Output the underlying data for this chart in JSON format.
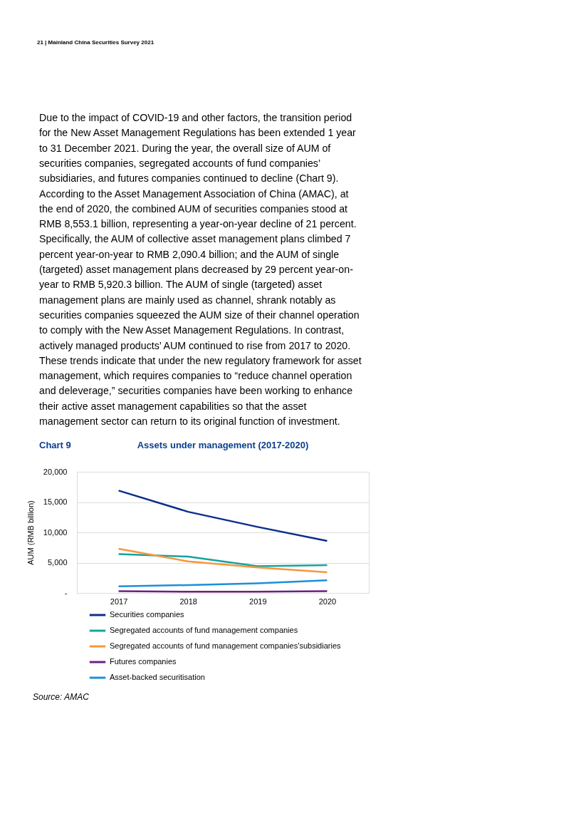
{
  "chart_data": {
    "type": "line",
    "title": "Assets under management (2017-2020)",
    "subtitle": "Chart 9",
    "ylabel": "AUM (RMB billion)",
    "categories": [
      "2017",
      "2018",
      "2019",
      "2020"
    ],
    "series": [
      {
        "name": "Securities companies",
        "color": "#0a2e8a",
        "values": [
          16900,
          13400,
          10900,
          8600
        ]
      },
      {
        "name": "Segregated accounts of fund management companies",
        "color": "#16a39b",
        "values": [
          6400,
          6000,
          4400,
          4600
        ]
      },
      {
        "name": "Segregated accounts of fund management companies’subsidiaries",
        "color": "#f7963d",
        "values": [
          7300,
          5200,
          4200,
          3400
        ]
      },
      {
        "name": "Futures companies",
        "color": "#6c2180",
        "values": [
          300,
          200,
          200,
          300
        ]
      },
      {
        "name": "Asset-backed securitisation",
        "color": "#1d8fd8",
        "values": [
          1100,
          1300,
          1600,
          2100
        ]
      }
    ],
    "ylim": [
      0,
      20000
    ],
    "yticks": [
      {
        "value": 0,
        "label": "-"
      },
      {
        "value": 5000,
        "label": "5,000"
      },
      {
        "value": 10000,
        "label": "10,000"
      },
      {
        "value": 15000,
        "label": "15,000"
      },
      {
        "value": 20000,
        "label": "20,000"
      }
    ],
    "grid": "y",
    "legend": "bottom",
    "marker": "none",
    "line_style": "solid",
    "annotations": [
      "21 | Mainland China Securities Survey 2021",
      "Due to the impact of COVID-19 and other factors, the transition period\nfor the New Asset Management Regulations has been extended 1 year\nto 31 December 2021. During the year, the overall size of AUM of\nsecurities companies, segregated accounts of fund companies’\nsubsidiaries, and futures companies continued to decline (Chart 9).\nAccording to the Asset Management Association of China (AMAC), at\nthe end of 2020, the combined AUM of securities companies stood at\nRMB 8,553.1 billion, representing a year-on-year decline of 21 percent.\nSpecifically, the AUM of collective asset management plans climbed 7\npercent year-on-year to RMB 2,090.4 billion; and the AUM of single\n(targeted) asset management plans decreased by 29 percent year-on-\nyear to RMB 5,920.3 billion. The AUM of single (targeted) asset\nmanagement plans are mainly used as channel, shrank notably as\nsecurities companies squeezed the AUM size of their channel operation\nto comply with the New Asset Management Regulations. In contrast,\nactively managed products’ AUM continued to rise from 2017 to 2020.\nThese trends indicate that under the new regulatory framework for asset\nmanagement, which requires companies to “reduce channel operation\nand deleverage,” securities companies have been working to enhance\ntheir active asset management capabilities so that the asset\nmanagement sector can return to its original function of investment.",
      "Source: AMAC"
    ]
  }
}
